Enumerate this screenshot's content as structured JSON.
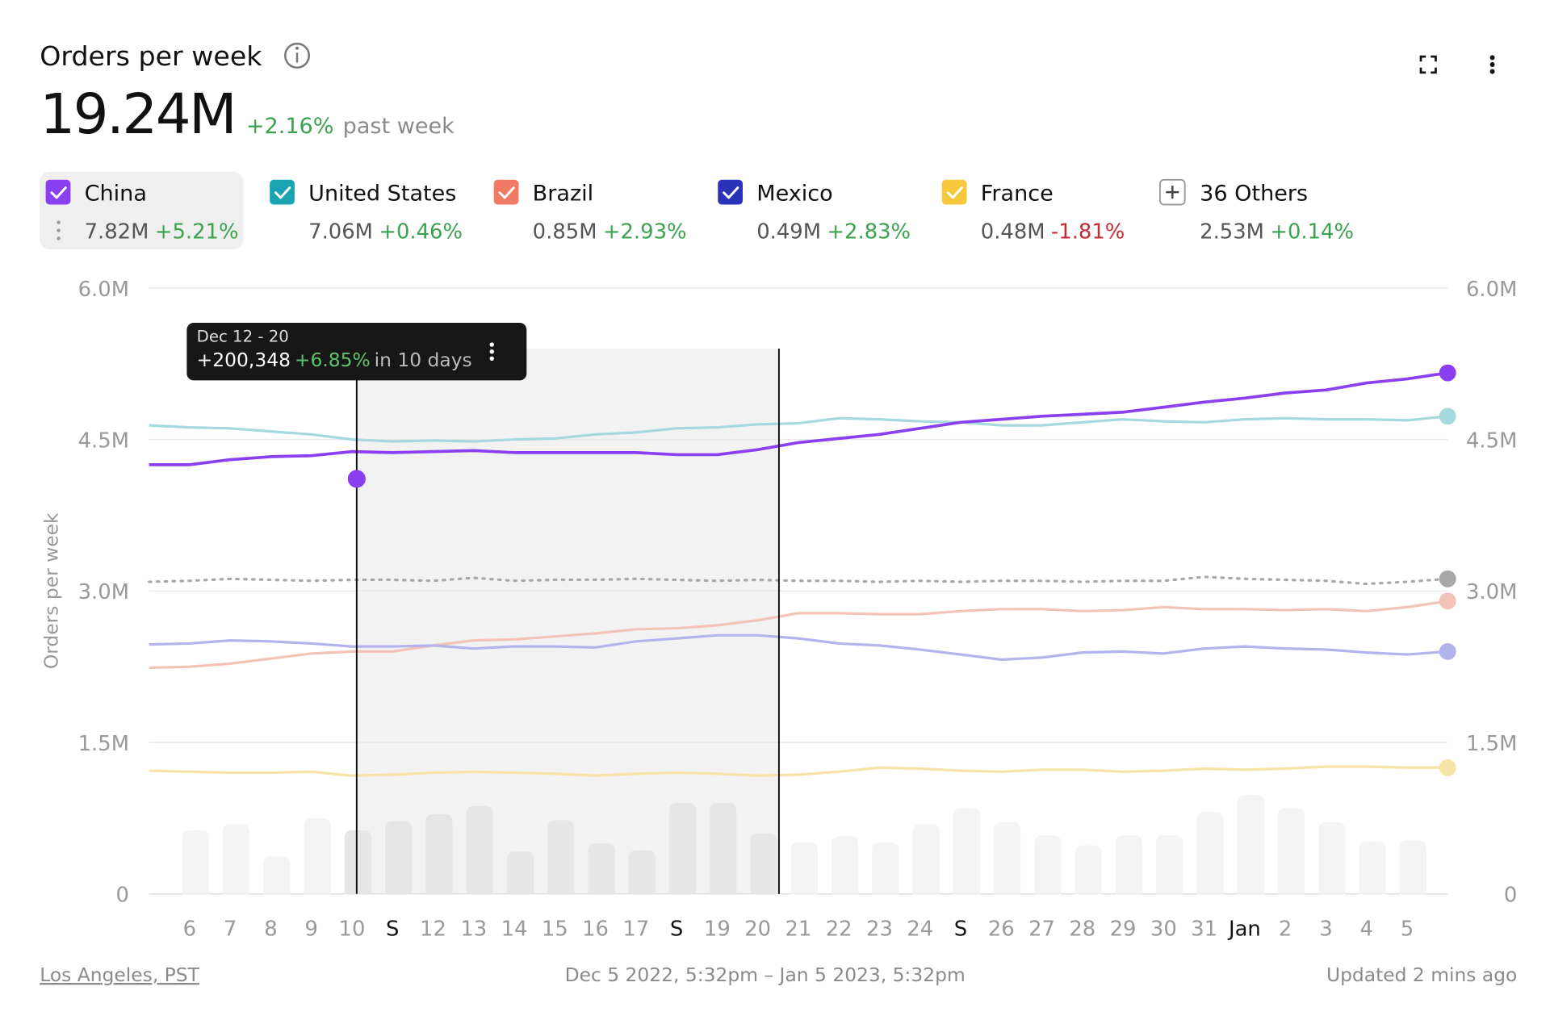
{
  "header": {
    "title": "Orders per week",
    "value": "19.24M",
    "change": "+2.16%",
    "change_note": "past week"
  },
  "footer": {
    "timezone": "Los Angeles, PST",
    "range": "Dec 5 2022, 5:32pm – Jan 5 2023, 5:32pm",
    "updated": "Updated 2 mins ago"
  },
  "tooltip": {
    "range": "Dec 12 - 20",
    "delta": "+200,348",
    "change": "+6.85%",
    "note": "in 10 days"
  },
  "chart_data": {
    "type": "line",
    "y_label": "Orders per week",
    "categories": [
      null,
      "6",
      "7",
      "8",
      "9",
      "10",
      "S",
      "12",
      "13",
      "14",
      "15",
      "16",
      "17",
      "S",
      "19",
      "20",
      "21",
      "22",
      "23",
      "24",
      "S",
      "26",
      "27",
      "28",
      "29",
      "30",
      "31",
      "Jan",
      "2",
      "3",
      "4",
      "5",
      null
    ],
    "ylim": [
      0,
      6000000
    ],
    "yticks": [
      {
        "value": 0,
        "label": "0"
      },
      {
        "value": 1500000,
        "label": "1.5M"
      },
      {
        "value": 3000000,
        "label": "3.0M"
      },
      {
        "value": 4500000,
        "label": "4.5M"
      },
      {
        "value": 6000000,
        "label": "6.0M"
      }
    ],
    "y2lim": [
      0,
      6000000
    ],
    "y2ticks": [
      {
        "value": 0,
        "label": "0"
      },
      {
        "value": 1500000,
        "label": "1.5M"
      },
      {
        "value": 3000000,
        "label": "3.0M"
      },
      {
        "value": 4500000,
        "label": "4.5M"
      },
      {
        "value": 6000000,
        "label": "6.0M"
      }
    ],
    "grid": true,
    "series": [
      {
        "name": "China",
        "color": "#8a3ff0",
        "line_color": "#8a3ff0",
        "total": "7.82M",
        "change": "+5.21%",
        "selected": true,
        "values": [
          4250000,
          4250000,
          4300000,
          4330000,
          4340000,
          4380000,
          4370000,
          4380000,
          4390000,
          4370000,
          4370000,
          4370000,
          4370000,
          4350000,
          4350000,
          4400000,
          4470000,
          4510000,
          4550000,
          4610000,
          4670000,
          4700000,
          4730000,
          4750000,
          4770000,
          4820000,
          4870000,
          4910000,
          4960000,
          4990000,
          5060000,
          5100000,
          5160000
        ]
      },
      {
        "name": "United States",
        "color": "#1aa3b0",
        "line_color": "#a5d9dd",
        "total": "7.06M",
        "change": "+0.46%",
        "values": [
          4640000,
          4620000,
          4610000,
          4580000,
          4550000,
          4500000,
          4480000,
          4490000,
          4480000,
          4500000,
          4510000,
          4550000,
          4570000,
          4610000,
          4620000,
          4650000,
          4660000,
          4710000,
          4700000,
          4680000,
          4670000,
          4640000,
          4640000,
          4670000,
          4700000,
          4680000,
          4670000,
          4700000,
          4710000,
          4700000,
          4700000,
          4690000,
          4730000
        ]
      },
      {
        "name": "Brazil",
        "color": "#f07a63",
        "line_color": "#f3c3b8",
        "total": "0.85M",
        "change": "+2.93%",
        "values": [
          2240000,
          2250000,
          2280000,
          2330000,
          2380000,
          2400000,
          2400000,
          2460000,
          2510000,
          2520000,
          2550000,
          2580000,
          2620000,
          2630000,
          2660000,
          2710000,
          2780000,
          2780000,
          2770000,
          2770000,
          2800000,
          2820000,
          2820000,
          2800000,
          2810000,
          2840000,
          2820000,
          2820000,
          2810000,
          2820000,
          2800000,
          2840000,
          2900000
        ]
      },
      {
        "name": "Mexico",
        "color": "#2a33b8",
        "line_color": "#b3b4ec",
        "total": "0.49M",
        "change": "+2.83%",
        "values": [
          2470000,
          2480000,
          2510000,
          2500000,
          2480000,
          2450000,
          2450000,
          2460000,
          2430000,
          2450000,
          2450000,
          2440000,
          2500000,
          2530000,
          2560000,
          2560000,
          2530000,
          2480000,
          2460000,
          2420000,
          2370000,
          2320000,
          2340000,
          2390000,
          2400000,
          2380000,
          2430000,
          2450000,
          2430000,
          2420000,
          2390000,
          2370000,
          2400000
        ]
      },
      {
        "name": "France",
        "color": "#f7c83c",
        "line_color": "#f7e3a6",
        "total": "0.48M",
        "change": "-1.81%",
        "values": [
          1220000,
          1210000,
          1200000,
          1200000,
          1210000,
          1170000,
          1180000,
          1200000,
          1210000,
          1200000,
          1190000,
          1170000,
          1190000,
          1200000,
          1190000,
          1170000,
          1180000,
          1210000,
          1250000,
          1240000,
          1220000,
          1210000,
          1230000,
          1230000,
          1210000,
          1220000,
          1240000,
          1230000,
          1240000,
          1260000,
          1260000,
          1250000,
          1250000
        ]
      },
      {
        "name": "36 Others",
        "color": "#9a9a9a",
        "line_color": "#a8a8a8",
        "total": "2.53M",
        "change": "+0.14%",
        "line_style": "dotted",
        "aggregate": true,
        "values": [
          3090000,
          3100000,
          3120000,
          3110000,
          3100000,
          3110000,
          3110000,
          3100000,
          3130000,
          3100000,
          3110000,
          3110000,
          3120000,
          3110000,
          3100000,
          3110000,
          3100000,
          3100000,
          3090000,
          3100000,
          3090000,
          3100000,
          3100000,
          3090000,
          3100000,
          3100000,
          3140000,
          3120000,
          3110000,
          3100000,
          3070000,
          3090000,
          3120000
        ]
      }
    ],
    "bars": [
      null,
      630000,
      690000,
      370000,
      750000,
      630000,
      720000,
      790000,
      870000,
      420000,
      730000,
      500000,
      430000,
      900000,
      900000,
      600000,
      510000,
      570000,
      510000,
      690000,
      850000,
      710000,
      580000,
      480000,
      580000,
      580000,
      810000,
      980000,
      850000,
      710000,
      520000,
      530000,
      null
    ],
    "marker": {
      "value": 4110000
    }
  }
}
